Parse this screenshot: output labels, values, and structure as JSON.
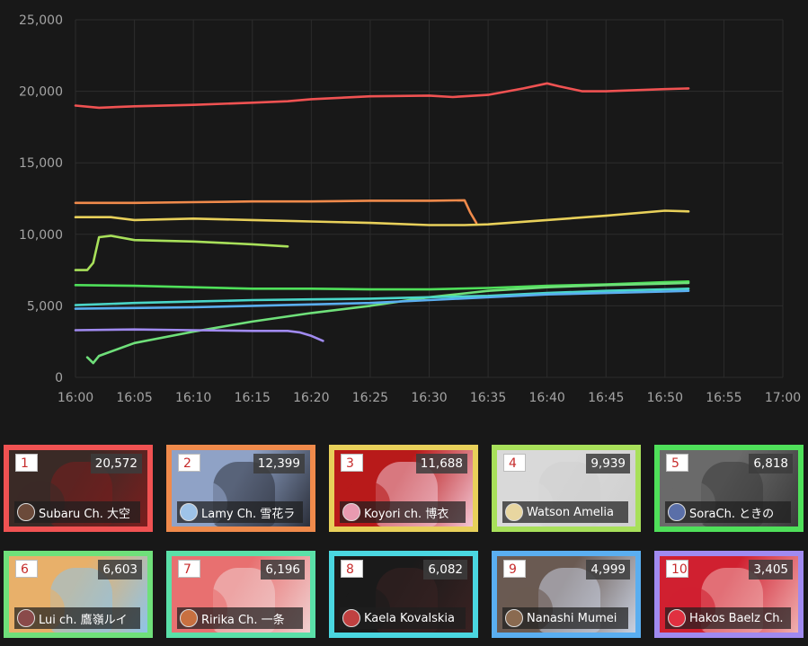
{
  "chart_data": {
    "type": "line",
    "xlabel": "",
    "ylabel": "",
    "x_ticks": [
      "16:00",
      "16:05",
      "16:10",
      "16:15",
      "16:20",
      "16:25",
      "16:30",
      "16:35",
      "16:40",
      "16:45",
      "16:50",
      "16:55",
      "17:00"
    ],
    "y_ticks": [
      "0",
      "5,000",
      "10,000",
      "15,000",
      "20,000",
      "25,000"
    ],
    "xlim": [
      "16:00",
      "17:00"
    ],
    "ylim": [
      0,
      25000
    ],
    "grid": true,
    "series": [
      {
        "color": "#f05252",
        "points": [
          [
            "16:00",
            19000
          ],
          [
            "16:02",
            18850
          ],
          [
            "16:05",
            18950
          ],
          [
            "16:10",
            19050
          ],
          [
            "16:15",
            19200
          ],
          [
            "16:18",
            19300
          ],
          [
            "16:20",
            19450
          ],
          [
            "16:25",
            19650
          ],
          [
            "16:30",
            19700
          ],
          [
            "16:32",
            19600
          ],
          [
            "16:35",
            19750
          ],
          [
            "16:38",
            20200
          ],
          [
            "16:40",
            20550
          ],
          [
            "16:41",
            20350
          ],
          [
            "16:43",
            20000
          ],
          [
            "16:45",
            20000
          ],
          [
            "16:50",
            20150
          ],
          [
            "16:52",
            20200
          ]
        ]
      },
      {
        "color": "#f08a4b",
        "points": [
          [
            "16:00",
            12200
          ],
          [
            "16:05",
            12200
          ],
          [
            "16:10",
            12250
          ],
          [
            "16:15",
            12300
          ],
          [
            "16:20",
            12300
          ],
          [
            "16:25",
            12350
          ],
          [
            "16:30",
            12350
          ],
          [
            "16:33",
            12380
          ],
          [
            "16:33.5",
            11500
          ],
          [
            "16:34",
            10800
          ]
        ]
      },
      {
        "color": "#e8d05a",
        "points": [
          [
            "16:00",
            11200
          ],
          [
            "16:03",
            11200
          ],
          [
            "16:05",
            11000
          ],
          [
            "16:10",
            11100
          ],
          [
            "16:15",
            11000
          ],
          [
            "16:20",
            10900
          ],
          [
            "16:25",
            10800
          ],
          [
            "16:30",
            10650
          ],
          [
            "16:33",
            10650
          ],
          [
            "16:35",
            10700
          ],
          [
            "16:40",
            11000
          ],
          [
            "16:45",
            11300
          ],
          [
            "16:50",
            11650
          ],
          [
            "16:52",
            11600
          ]
        ]
      },
      {
        "color": "#a8e05a",
        "points": [
          [
            "16:00",
            7500
          ],
          [
            "16:01",
            7500
          ],
          [
            "16:01.5",
            8000
          ],
          [
            "16:02",
            9800
          ],
          [
            "16:03",
            9900
          ],
          [
            "16:05",
            9600
          ],
          [
            "16:10",
            9500
          ],
          [
            "16:15",
            9300
          ],
          [
            "16:18",
            9150
          ]
        ]
      },
      {
        "color": "#4fe05a",
        "points": [
          [
            "16:00",
            6450
          ],
          [
            "16:05",
            6400
          ],
          [
            "16:10",
            6300
          ],
          [
            "16:15",
            6200
          ],
          [
            "16:20",
            6200
          ],
          [
            "16:25",
            6150
          ],
          [
            "16:30",
            6150
          ],
          [
            "16:35",
            6250
          ],
          [
            "16:40",
            6400
          ],
          [
            "16:45",
            6500
          ],
          [
            "16:50",
            6650
          ],
          [
            "16:52",
            6700
          ]
        ]
      },
      {
        "color": "#6fe07a",
        "points": [
          [
            "16:01",
            1400
          ],
          [
            "16:01.5",
            1000
          ],
          [
            "16:02",
            1500
          ],
          [
            "16:05",
            2400
          ],
          [
            "16:10",
            3200
          ],
          [
            "16:15",
            3900
          ],
          [
            "16:20",
            4500
          ],
          [
            "16:25",
            5000
          ],
          [
            "16:30",
            5600
          ],
          [
            "16:35",
            6050
          ],
          [
            "16:40",
            6300
          ],
          [
            "16:45",
            6450
          ],
          [
            "16:50",
            6550
          ],
          [
            "16:52",
            6600
          ]
        ]
      },
      {
        "color": "#4ad6c8",
        "points": [
          [
            "16:00",
            5050
          ],
          [
            "16:05",
            5200
          ],
          [
            "16:10",
            5300
          ],
          [
            "16:15",
            5400
          ],
          [
            "16:20",
            5450
          ],
          [
            "16:25",
            5500
          ],
          [
            "16:30",
            5600
          ],
          [
            "16:35",
            5700
          ],
          [
            "16:40",
            5900
          ],
          [
            "16:45",
            6050
          ],
          [
            "16:50",
            6150
          ],
          [
            "16:52",
            6200
          ]
        ]
      },
      {
        "color": "#5aaef0",
        "points": [
          [
            "16:00",
            4800
          ],
          [
            "16:05",
            4850
          ],
          [
            "16:10",
            4900
          ],
          [
            "16:15",
            5000
          ],
          [
            "16:20",
            5100
          ],
          [
            "16:25",
            5200
          ],
          [
            "16:30",
            5400
          ],
          [
            "16:35",
            5600
          ],
          [
            "16:40",
            5800
          ],
          [
            "16:45",
            5900
          ],
          [
            "16:50",
            6000
          ],
          [
            "16:52",
            6050
          ]
        ]
      },
      {
        "color": "#a08af0",
        "points": [
          [
            "16:00",
            3300
          ],
          [
            "16:05",
            3350
          ],
          [
            "16:10",
            3300
          ],
          [
            "16:15",
            3250
          ],
          [
            "16:18",
            3250
          ],
          [
            "16:19",
            3150
          ],
          [
            "16:20",
            2900
          ],
          [
            "16:21",
            2550
          ]
        ]
      }
    ]
  },
  "cards": [
    {
      "rank": "1",
      "viewers": "20,572",
      "name": "Subaru Ch. 大空",
      "border": "#f05252",
      "bg1": "#3a2a26",
      "bg2": "#7a1e1e",
      "av": "#6b4a3a"
    },
    {
      "rank": "2",
      "viewers": "12,399",
      "name": "Lamy Ch. 雪花ラ",
      "border": "#f08a4b",
      "bg1": "#8fa2c6",
      "bg2": "#2b2f3a",
      "av": "#9ec3e8"
    },
    {
      "rank": "3",
      "viewers": "11,688",
      "name": "Koyori ch. 博衣",
      "border": "#e8d05a",
      "bg1": "#b81a1a",
      "bg2": "#f3c6d4",
      "av": "#e89ab0"
    },
    {
      "rank": "4",
      "viewers": "9,939",
      "name": "Watson Amelia",
      "border": "#a8e05a",
      "bg1": "#d9d9d9",
      "bg2": "#cfcfcf",
      "av": "#e8d6a0"
    },
    {
      "rank": "5",
      "viewers": "6,818",
      "name": "SoraCh. ときの",
      "border": "#4fe05a",
      "bg1": "#6a6a6a",
      "bg2": "#3a3a3a",
      "av": "#5a6fa8"
    },
    {
      "rank": "6",
      "viewers": "6,603",
      "name": "Lui ch. 鷹嶺ルイ",
      "border": "#6fe07a",
      "bg1": "#e8b06a",
      "bg2": "#8ec4e8",
      "av": "#8a4a4a"
    },
    {
      "rank": "7",
      "viewers": "6,196",
      "name": "Ririka Ch. 一条",
      "border": "#5ae0a8",
      "bg1": "#e87070",
      "bg2": "#f0d0d0",
      "av": "#c87040"
    },
    {
      "rank": "8",
      "viewers": "6,082",
      "name": "Kaela Kovalskia",
      "border": "#4ad6e0",
      "bg1": "#1a1a1a",
      "bg2": "#3a2222",
      "av": "#c04040"
    },
    {
      "rank": "9",
      "viewers": "4,999",
      "name": "Nanashi Mumei",
      "border": "#5aaef0",
      "bg1": "#6a5a52",
      "bg2": "#c8d0e0",
      "av": "#8a6a50"
    },
    {
      "rank": "10",
      "viewers": "3,405",
      "name": "Hakos Baelz Ch.",
      "border": "#a08af0",
      "bg1": "#d02030",
      "bg2": "#f0b0b0",
      "av": "#e03040"
    }
  ]
}
